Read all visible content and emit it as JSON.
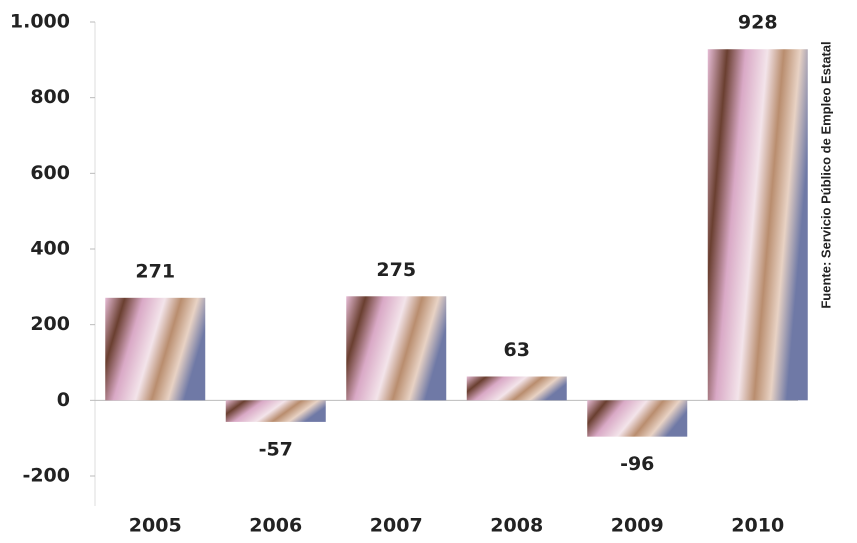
{
  "chart_data": {
    "type": "bar",
    "categories": [
      "2005",
      "2006",
      "2007",
      "2008",
      "2009",
      "2010"
    ],
    "values": [
      271,
      -57,
      275,
      63,
      -96,
      928
    ],
    "ylim": [
      -200,
      1000
    ],
    "yticks": [
      -200,
      0,
      200,
      400,
      600,
      {
        "value": 1000,
        "label": "1.000"
      },
      800
    ],
    "source": "Fuente: Servicio Público de Empleo Estatal"
  }
}
